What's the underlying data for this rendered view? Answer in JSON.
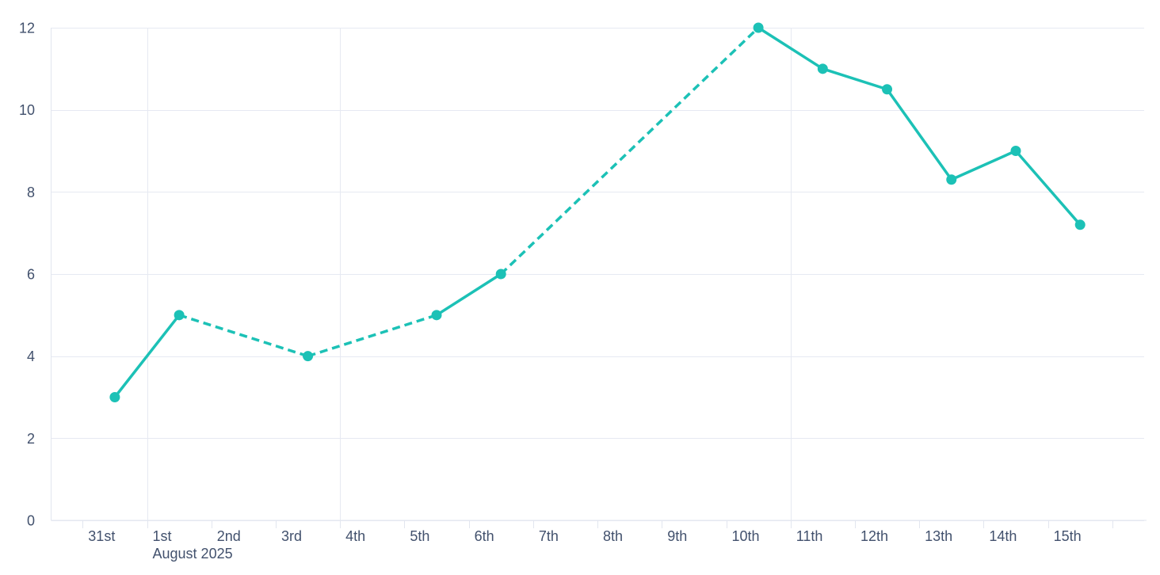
{
  "colors": {
    "accent": "#1CC1B6",
    "grid": "#E6E9F2",
    "axis_line": "#E2E6EF",
    "tick_mark": "#E2E6EF",
    "label": "#42516D",
    "background": "#FFFFFF"
  },
  "chart_data": {
    "type": "line",
    "title": "",
    "legend": "none",
    "x_axis": {
      "unit": "day",
      "tick_labels": [
        "31st",
        "1st",
        "2nd",
        "3rd",
        "4th",
        "5th",
        "6th",
        "7th",
        "8th",
        "9th",
        "10th",
        "11th",
        "12th",
        "13th",
        "14th",
        "15th"
      ],
      "trailing_unlabeled_tick": true,
      "month_label": "August 2025",
      "month_label_under": "1st",
      "vertical_gridlines_at": [
        "1st",
        "4th",
        "11th"
      ],
      "tick_marks": "daily"
    },
    "y_axis": {
      "tick_labels": [
        "0",
        "2",
        "4",
        "6",
        "8",
        "10",
        "12"
      ],
      "min": 0,
      "max": 12,
      "grid": true
    },
    "series": [
      {
        "name": "daily-values",
        "color": "#1CC1B6",
        "marker": "circle",
        "points": [
          {
            "day": "31st",
            "day_offset": 0,
            "value": 3
          },
          {
            "day": "1st",
            "day_offset": 1,
            "value": 5
          },
          {
            "day": "3rd",
            "day_offset": 3,
            "value": 4
          },
          {
            "day": "5th",
            "day_offset": 5,
            "value": 5
          },
          {
            "day": "6th",
            "day_offset": 6,
            "value": 6
          },
          {
            "day": "10th",
            "day_offset": 10,
            "value": 12
          },
          {
            "day": "11th",
            "day_offset": 11,
            "value": 11
          },
          {
            "day": "12th",
            "day_offset": 12,
            "value": 10.5
          },
          {
            "day": "13th",
            "day_offset": 13,
            "value": 8.3
          },
          {
            "day": "14th",
            "day_offset": 14,
            "value": 9
          },
          {
            "day": "15th",
            "day_offset": 15,
            "value": 7.2
          }
        ],
        "segment_styles": [
          "solid",
          "dashed",
          "dashed",
          "solid",
          "dashed",
          "solid",
          "solid",
          "solid",
          "solid",
          "solid"
        ]
      }
    ]
  }
}
